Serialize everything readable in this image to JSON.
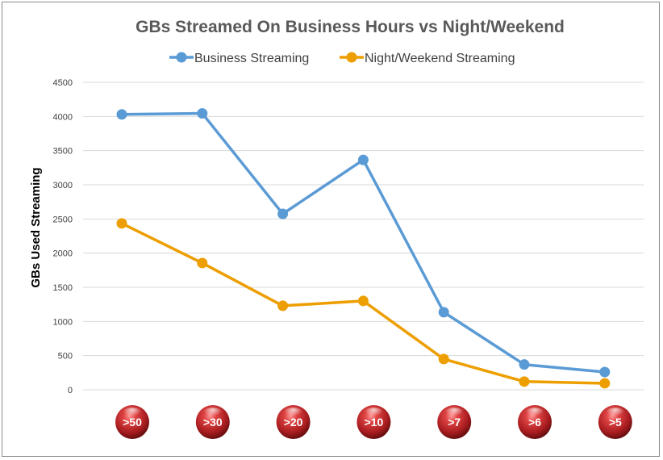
{
  "chart_data": {
    "type": "line",
    "title": "GBs Streamed On Business Hours vs Night/Weekend",
    "ylabel": "GBs Used Streaming",
    "xlabel": "",
    "categories": [
      ">50",
      ">30",
      ">20",
      ">10",
      ">7",
      ">6",
      ">5"
    ],
    "ylim": [
      0,
      4500
    ],
    "yticks": [
      0,
      500,
      1000,
      1500,
      2000,
      2500,
      3000,
      3500,
      4000,
      4500
    ],
    "grid": "horizontal",
    "legend_position": "top",
    "series": [
      {
        "name": "Business Streaming",
        "color": "#5B9BD5",
        "values": [
          4030,
          4045,
          2575,
          3365,
          1135,
          370,
          260
        ]
      },
      {
        "name": "Night/Weekend Streaming",
        "color": "#ED9E00",
        "values": [
          2435,
          1855,
          1230,
          1300,
          450,
          120,
          95
        ]
      }
    ],
    "category_marker_color": "#C0282D"
  }
}
